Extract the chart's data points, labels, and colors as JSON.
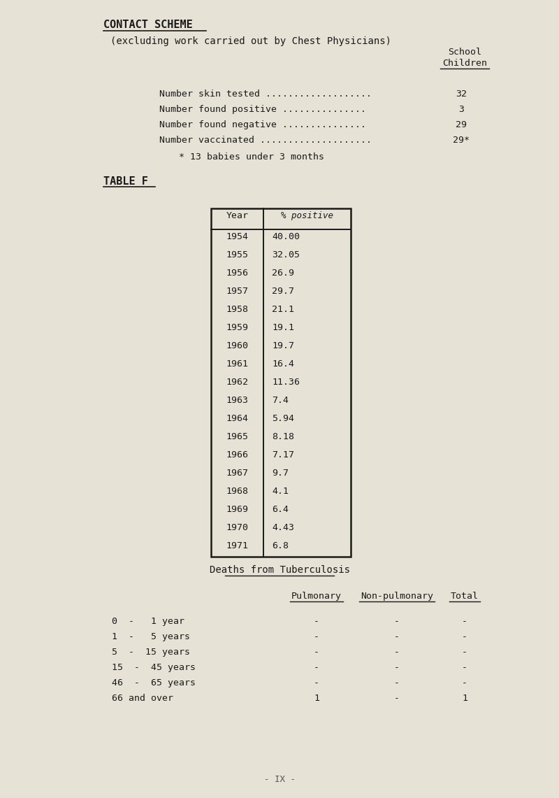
{
  "bg_color": "#e6e2d6",
  "title_line1": "CONTACT SCHEME",
  "title_line2": "(excluding work carried out by Chest Physicians)",
  "school_children_header": [
    "School",
    "Children"
  ],
  "rows": [
    [
      "Number skin tested ...................",
      "32"
    ],
    [
      "Number found positive ...............",
      "3"
    ],
    [
      "Number found negative ...............",
      "29"
    ],
    [
      "Number vaccinated ....................",
      "29*"
    ]
  ],
  "footnote": "* 13 babies under 3 months",
  "table_f_label": "TABLE F",
  "table_years": [
    1954,
    1955,
    1956,
    1957,
    1958,
    1959,
    1960,
    1961,
    1962,
    1963,
    1964,
    1965,
    1966,
    1967,
    1968,
    1969,
    1970,
    1971
  ],
  "table_pct": [
    "40.00",
    "32.05",
    "26.9",
    "29.7",
    "21.1",
    "19.1",
    "19.7",
    "16.4",
    "11.36",
    "7.4",
    "5.94",
    "8.18",
    "7.17",
    "9.7",
    "4.1",
    "6.4",
    "4.43",
    "6.8"
  ],
  "table_col1_header": "Year",
  "table_col2_header": "% positive",
  "deaths_title": "Deaths from Tuberculosis",
  "deaths_col_headers": [
    "Pulmonary",
    "Non-pulmonary",
    "Total"
  ],
  "deaths_rows": [
    [
      "0  -   1 year",
      "-",
      "-",
      "-"
    ],
    [
      "1  -   5 years",
      "-",
      "-",
      "-"
    ],
    [
      "5  -  15 years",
      "-",
      "-",
      "-"
    ],
    [
      "15  -  45 years",
      "-",
      "-",
      "-"
    ],
    [
      "46  -  65 years",
      "-",
      "-",
      "-"
    ],
    [
      "66 and over",
      "1",
      "-",
      "1"
    ]
  ],
  "page_label": "- IX -",
  "font_size_title": 11,
  "font_size_body": 9.5,
  "font_size_table": 9.5,
  "font_size_page": 9
}
